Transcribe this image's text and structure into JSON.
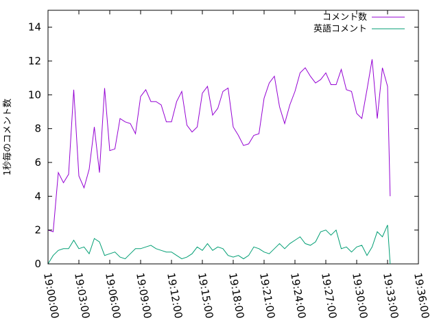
{
  "chart_data": {
    "type": "line",
    "ylabel": "1秒毎のコメント数",
    "xlim": [
      "19:00:00",
      "19:36:00"
    ],
    "ylim": [
      0,
      15
    ],
    "xticks": [
      "19:00:00",
      "19:03:00",
      "19:06:00",
      "19:09:00",
      "19:12:00",
      "19:15:00",
      "19:18:00",
      "19:21:00",
      "19:24:00",
      "19:27:00",
      "19:30:00",
      "19:33:00",
      "19:36:00"
    ],
    "yticks": [
      "0",
      "2",
      "4",
      "6",
      "8",
      "10",
      "12",
      "14"
    ],
    "legend": "top-right",
    "grid": false,
    "x": [
      "19:00:00",
      "19:00:30",
      "19:01:00",
      "19:01:30",
      "19:02:00",
      "19:02:30",
      "19:03:00",
      "19:03:30",
      "19:04:00",
      "19:04:30",
      "19:05:00",
      "19:05:30",
      "19:06:00",
      "19:06:30",
      "19:07:00",
      "19:07:30",
      "19:08:00",
      "19:08:30",
      "19:09:00",
      "19:09:30",
      "19:10:00",
      "19:10:30",
      "19:11:00",
      "19:11:30",
      "19:12:00",
      "19:12:30",
      "19:13:00",
      "19:13:30",
      "19:14:00",
      "19:14:30",
      "19:15:00",
      "19:15:30",
      "19:16:00",
      "19:16:30",
      "19:17:00",
      "19:17:30",
      "19:18:00",
      "19:18:30",
      "19:19:00",
      "19:19:30",
      "19:20:00",
      "19:20:30",
      "19:21:00",
      "19:21:30",
      "19:22:00",
      "19:22:30",
      "19:23:00",
      "19:23:30",
      "19:24:00",
      "19:24:30",
      "19:25:00",
      "19:25:30",
      "19:26:00",
      "19:26:30",
      "19:27:00",
      "19:27:30",
      "19:28:00",
      "19:28:30",
      "19:29:00",
      "19:29:30",
      "19:30:00",
      "19:30:30",
      "19:31:00",
      "19:31:30",
      "19:32:00",
      "19:32:30",
      "19:33:00",
      "19:33:15"
    ],
    "series": [
      {
        "name": "コメント数",
        "color": "#9400d3",
        "values": [
          2.0,
          1.9,
          5.4,
          4.8,
          5.3,
          10.3,
          5.2,
          4.5,
          5.6,
          8.1,
          5.4,
          10.4,
          6.7,
          6.8,
          8.6,
          8.4,
          8.3,
          7.7,
          9.9,
          10.3,
          9.6,
          9.6,
          9.4,
          8.4,
          8.4,
          9.6,
          10.2,
          8.2,
          7.8,
          8.1,
          10.1,
          10.5,
          8.8,
          9.2,
          10.2,
          10.4,
          8.1,
          7.6,
          7.0,
          7.1,
          7.6,
          7.7,
          9.8,
          10.7,
          11.1,
          9.3,
          8.3,
          9.4,
          10.2,
          11.3,
          11.6,
          11.1,
          10.7,
          10.9,
          11.3,
          10.6,
          10.6,
          11.5,
          10.3,
          10.2,
          8.9,
          8.6,
          10.3,
          12.1,
          8.6,
          11.6,
          10.5,
          4.0
        ]
      },
      {
        "name": "英語コメント",
        "color": "#009e73",
        "values": [
          0.0,
          0.5,
          0.8,
          0.9,
          0.9,
          1.4,
          0.9,
          1.0,
          0.6,
          1.5,
          1.3,
          0.5,
          0.6,
          0.7,
          0.4,
          0.3,
          0.6,
          0.9,
          0.9,
          1.0,
          1.1,
          0.9,
          0.8,
          0.7,
          0.7,
          0.5,
          0.3,
          0.4,
          0.6,
          1.0,
          0.8,
          1.2,
          0.8,
          1.0,
          0.9,
          0.5,
          0.4,
          0.5,
          0.3,
          0.5,
          1.0,
          0.9,
          0.7,
          0.6,
          0.9,
          1.2,
          0.9,
          1.2,
          1.4,
          1.6,
          1.2,
          1.1,
          1.3,
          1.9,
          2.0,
          1.7,
          2.0,
          0.9,
          1.0,
          0.7,
          1.0,
          1.1,
          0.5,
          1.0,
          1.9,
          1.6,
          2.3,
          0.0
        ]
      }
    ]
  }
}
